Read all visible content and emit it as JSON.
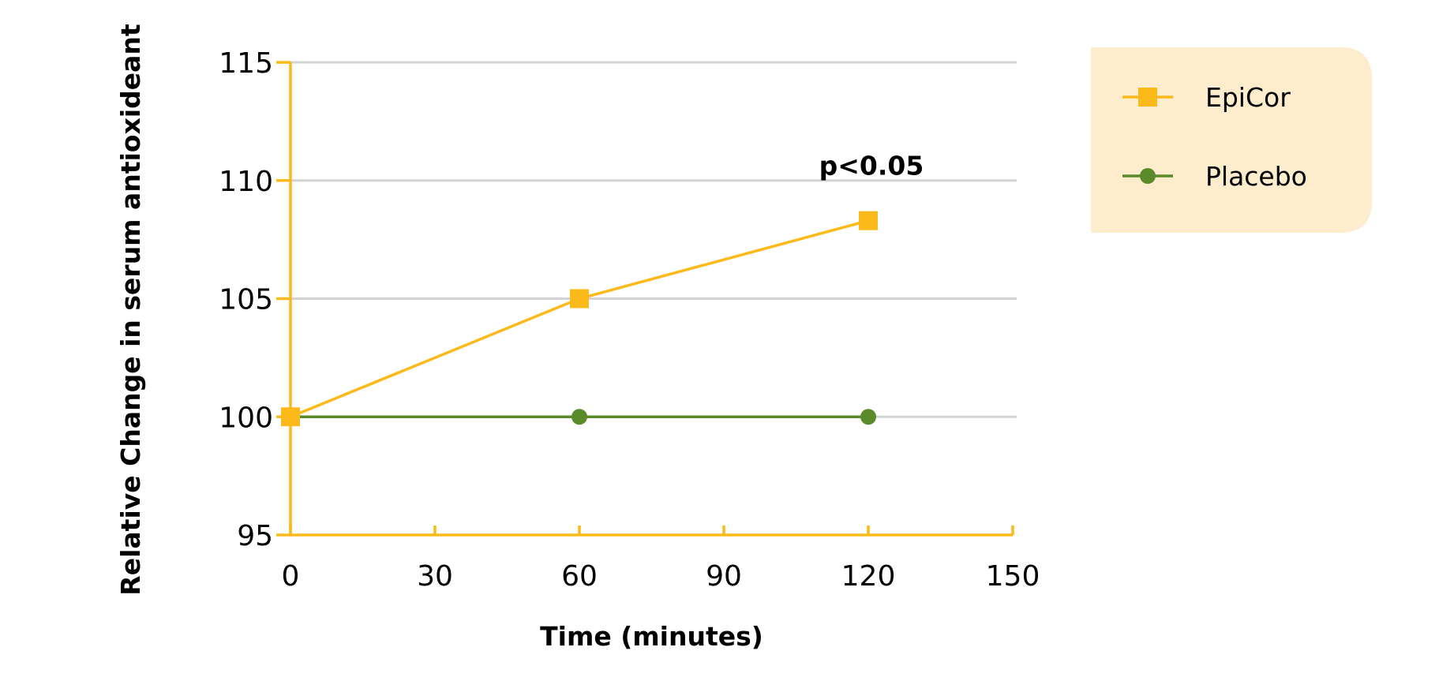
{
  "chart_data": {
    "type": "line",
    "xlabel": "Time (minutes)",
    "ylabel": "Relative Change in serum antioxideant",
    "xlim": [
      0,
      150
    ],
    "ylim": [
      95,
      115
    ],
    "x_ticks": [
      0,
      30,
      60,
      90,
      120,
      150
    ],
    "y_ticks": [
      95,
      100,
      105,
      110,
      115
    ],
    "grid": "horizontal",
    "legend_position": "top-right",
    "series": [
      {
        "name": "EpiCor",
        "color": "#FBBA19",
        "marker": "square",
        "x": [
          0,
          60,
          120
        ],
        "y": [
          100,
          105,
          108.3
        ]
      },
      {
        "name": "Placebo",
        "color": "#5A8A2A",
        "marker": "circle",
        "x": [
          0,
          60,
          120
        ],
        "y": [
          100,
          100,
          100
        ]
      }
    ],
    "annotations": [
      {
        "text": "p<0.05",
        "x": 120,
        "y": 108.3
      }
    ],
    "colors": {
      "axis": "#FBBA19",
      "grid": "#D3D3D3",
      "legend_bg": "#FEEDCC"
    }
  }
}
